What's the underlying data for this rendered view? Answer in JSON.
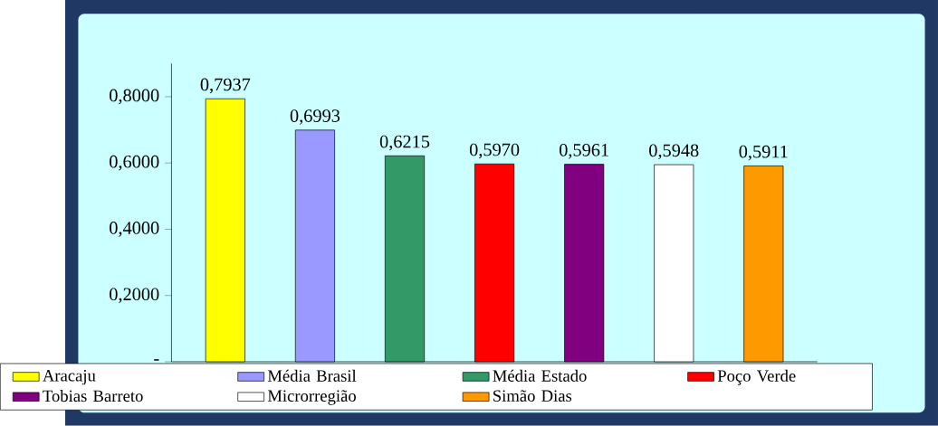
{
  "chart_data": {
    "type": "bar",
    "categories": [
      null,
      null,
      null,
      null,
      null,
      null,
      null
    ],
    "series": [
      {
        "name": "Aracaju",
        "color": "#ffff00",
        "values": [
          0.7937,
          null,
          null,
          null,
          null,
          null,
          null
        ],
        "value_labels": [
          "0,7937",
          null,
          null,
          null,
          null,
          null,
          null
        ]
      },
      {
        "name": "Média Brasil",
        "color": "#9999ff",
        "values": [
          null,
          0.6993,
          null,
          null,
          null,
          null,
          null
        ],
        "value_labels": [
          null,
          "0,6993",
          null,
          null,
          null,
          null,
          null
        ]
      },
      {
        "name": "Média Estado",
        "color": "#339966",
        "values": [
          null,
          null,
          0.6215,
          null,
          null,
          null,
          null
        ],
        "value_labels": [
          null,
          null,
          "0,6215",
          null,
          null,
          null,
          null
        ]
      },
      {
        "name": "Poço Verde",
        "color": "#ff0000",
        "values": [
          null,
          null,
          null,
          0.597,
          null,
          null,
          null
        ],
        "value_labels": [
          null,
          null,
          null,
          "0,5970",
          null,
          null,
          null
        ]
      },
      {
        "name": "Tobias Barreto",
        "color": "#800080",
        "values": [
          null,
          null,
          null,
          null,
          0.5961,
          null,
          null
        ],
        "value_labels": [
          null,
          null,
          null,
          null,
          "0,5961",
          null,
          null
        ]
      },
      {
        "name": "Microrregião",
        "color": "#ffffff",
        "values": [
          null,
          null,
          null,
          null,
          null,
          0.5948,
          null
        ],
        "value_labels": [
          null,
          null,
          null,
          null,
          null,
          "0,5948",
          null
        ]
      },
      {
        "name": "Simão Dias",
        "color": "#ff9900",
        "values": [
          null,
          null,
          null,
          null,
          null,
          null,
          0.5911
        ],
        "value_labels": [
          null,
          null,
          null,
          null,
          null,
          null,
          "0,5911"
        ]
      }
    ],
    "ylim": [
      0,
      0.9
    ],
    "yticks": [
      {
        "value": 0,
        "label": "-"
      },
      {
        "value": 0.2,
        "label": "0,2000"
      },
      {
        "value": 0.4,
        "label": "0,4000"
      },
      {
        "value": 0.6,
        "label": "0,6000"
      },
      {
        "value": 0.8,
        "label": "0,8000"
      }
    ],
    "legend": "bottom"
  }
}
